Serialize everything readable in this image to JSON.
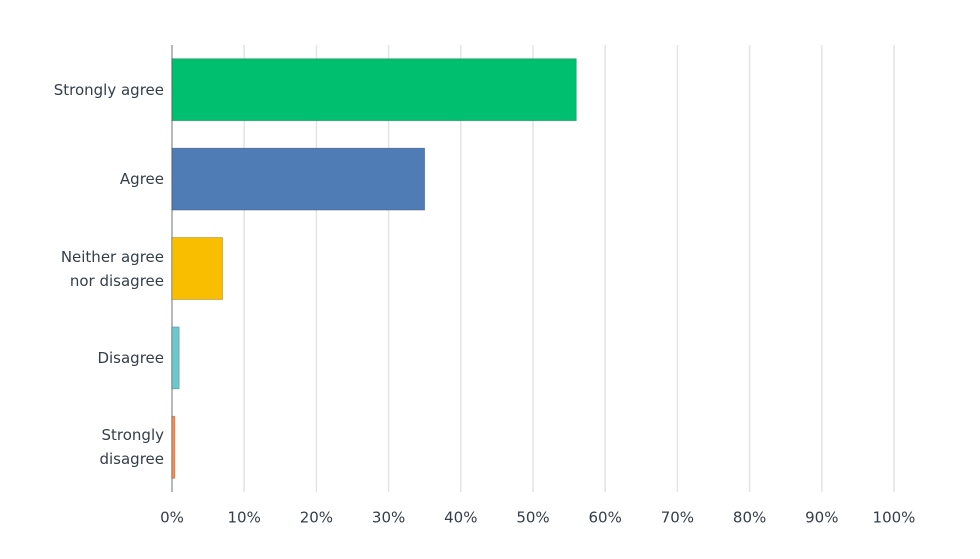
{
  "chart_data": {
    "type": "bar",
    "orientation": "horizontal",
    "categories": [
      "Strongly agree",
      "Agree",
      "Neither agree\nnor disagree",
      "Disagree",
      "Strongly\ndisagree"
    ],
    "values": [
      56,
      35,
      7,
      1,
      0.4
    ],
    "colors": [
      "#00bf6f",
      "#507cb6",
      "#f9be00",
      "#6bc8cd",
      "#ff8b4f"
    ],
    "xlim": [
      0,
      100
    ],
    "xticks": [
      {
        "value": 0,
        "label": "0%"
      },
      {
        "value": 10,
        "label": "10%"
      },
      {
        "value": 20,
        "label": "20%"
      },
      {
        "value": 30,
        "label": "30%"
      },
      {
        "value": 40,
        "label": "40%"
      },
      {
        "value": 50,
        "label": "50%"
      },
      {
        "value": 60,
        "label": "60%"
      },
      {
        "value": 70,
        "label": "70%"
      },
      {
        "value": 80,
        "label": "80%"
      },
      {
        "value": 90,
        "label": "90%"
      },
      {
        "value": 100,
        "label": "100%"
      }
    ],
    "grid": true
  }
}
